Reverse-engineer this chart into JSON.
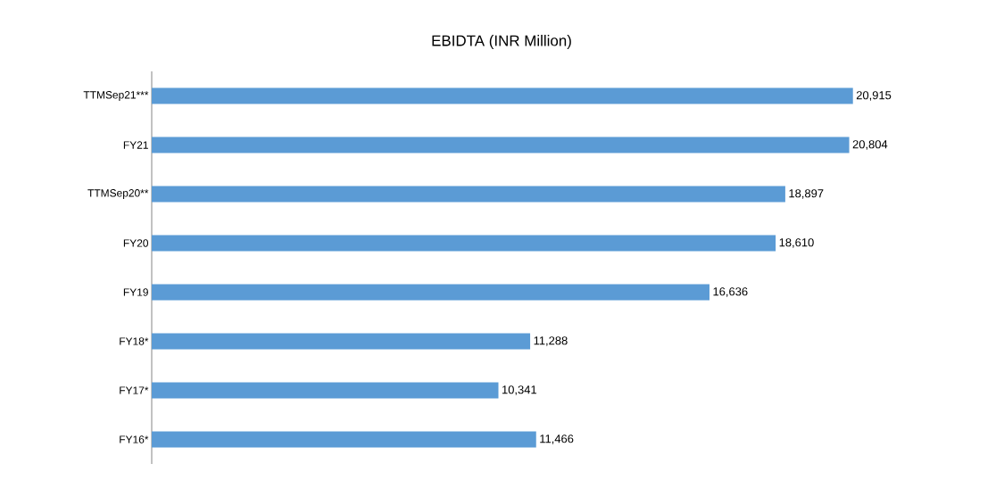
{
  "chart_data": {
    "type": "bar",
    "orientation": "horizontal",
    "title": "EBIDTA (INR Million)",
    "categories": [
      "TTMSep21***",
      "FY21",
      "TTMSep20**",
      "FY20",
      "FY19",
      "FY18*",
      "FY17*",
      "FY16*"
    ],
    "values": [
      20915,
      20804,
      18897,
      18610,
      16636,
      11288,
      10341,
      11466
    ],
    "value_labels": [
      "20,915",
      "20,804",
      "18,897",
      "18,610",
      "16,636",
      "11,288",
      "10,341",
      "11,466"
    ],
    "color": "#5b9bd5"
  }
}
